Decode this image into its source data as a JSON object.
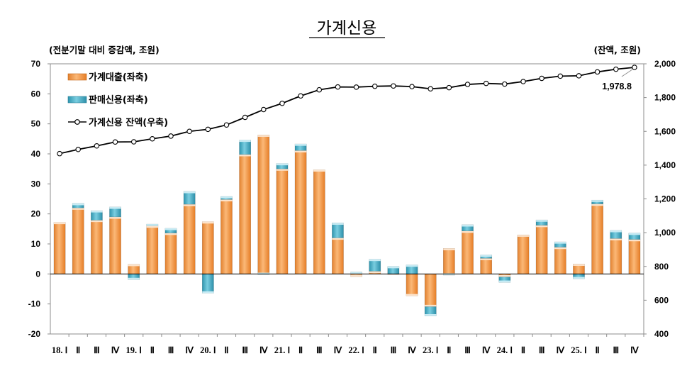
{
  "chart_data": {
    "type": "bar",
    "title": "가계신용",
    "left_axis_label": "(전분기말 대비 증감액, 조원)",
    "right_axis_label": "(잔액, 조원)",
    "left_ylim": [
      -20,
      70
    ],
    "left_ticks": [
      "70",
      "60",
      "50",
      "40",
      "30",
      "20",
      "10",
      "0",
      "-10",
      "-20"
    ],
    "right_ylim": [
      400,
      2000
    ],
    "right_ticks": [
      "2,000",
      "1,800",
      "1,600",
      "1,400",
      "1,200",
      "1,000",
      "800",
      "600",
      "400"
    ],
    "grid": false,
    "legend_position": "top-left",
    "categories": [
      "18. Ⅰ",
      "Ⅱ",
      "Ⅲ",
      "Ⅳ",
      "19. Ⅰ",
      "Ⅱ",
      "Ⅲ",
      "Ⅳ",
      "20. Ⅰ",
      "Ⅱ",
      "Ⅲ",
      "Ⅳ",
      "21. Ⅰ",
      "Ⅱ",
      "Ⅲ",
      "Ⅳ",
      "22. Ⅰ",
      "Ⅱ",
      "Ⅲ",
      "Ⅳ",
      "23. Ⅰ",
      "Ⅱ",
      "Ⅲ",
      "Ⅳ",
      "24. Ⅰ",
      "Ⅱ",
      "Ⅲ",
      "Ⅳ",
      "25. Ⅰ",
      "Ⅱ",
      "Ⅲ",
      "Ⅳ"
    ],
    "series": [
      {
        "name": "가계대출(좌축)",
        "axis": "left",
        "kind": "stacked-bar",
        "color": "#F79646",
        "values": [
          17.2,
          22.0,
          17.9,
          19.0,
          3.2,
          16.0,
          13.6,
          23.2,
          17.4,
          24.8,
          39.8,
          46.3,
          35.0,
          41.1,
          34.7,
          12.0,
          -0.9,
          0.9,
          -0.1,
          -7.3,
          -10.9,
          8.5,
          14.3,
          5.2,
          -1.0,
          13.0,
          16.2,
          8.9,
          3.3,
          23.3,
          11.8,
          11.5
        ]
      },
      {
        "name": "판매신용(좌축)",
        "axis": "left",
        "kind": "stacked-bar",
        "color": "#4BACC6",
        "values": [
          0.0,
          1.5,
          3.2,
          3.3,
          -1.9,
          0.6,
          1.6,
          4.3,
          -6.4,
          1.0,
          4.8,
          -0.2,
          1.8,
          2.2,
          0.0,
          5.0,
          0.6,
          4.0,
          2.5,
          3.0,
          -3.1,
          -0.4,
          2.1,
          1.1,
          -1.8,
          0.0,
          1.8,
          1.8,
          -1.6,
          1.3,
          2.7,
          2.1
        ]
      },
      {
        "name": "가계신용 잔액(우축)",
        "axis": "right",
        "kind": "line",
        "color": "#000000",
        "values": [
          1468,
          1493,
          1514,
          1537,
          1538,
          1556,
          1572,
          1600,
          1612,
          1638,
          1683,
          1729,
          1766,
          1810,
          1846,
          1863,
          1862,
          1867,
          1869,
          1865,
          1852,
          1859,
          1878,
          1884,
          1880,
          1895,
          1914,
          1927,
          1929,
          1952,
          1968,
          1979
        ]
      }
    ],
    "annotations": [
      {
        "text": "1,978.8",
        "category": "Ⅳ",
        "series": "가계신용 잔액(우축)"
      }
    ]
  }
}
